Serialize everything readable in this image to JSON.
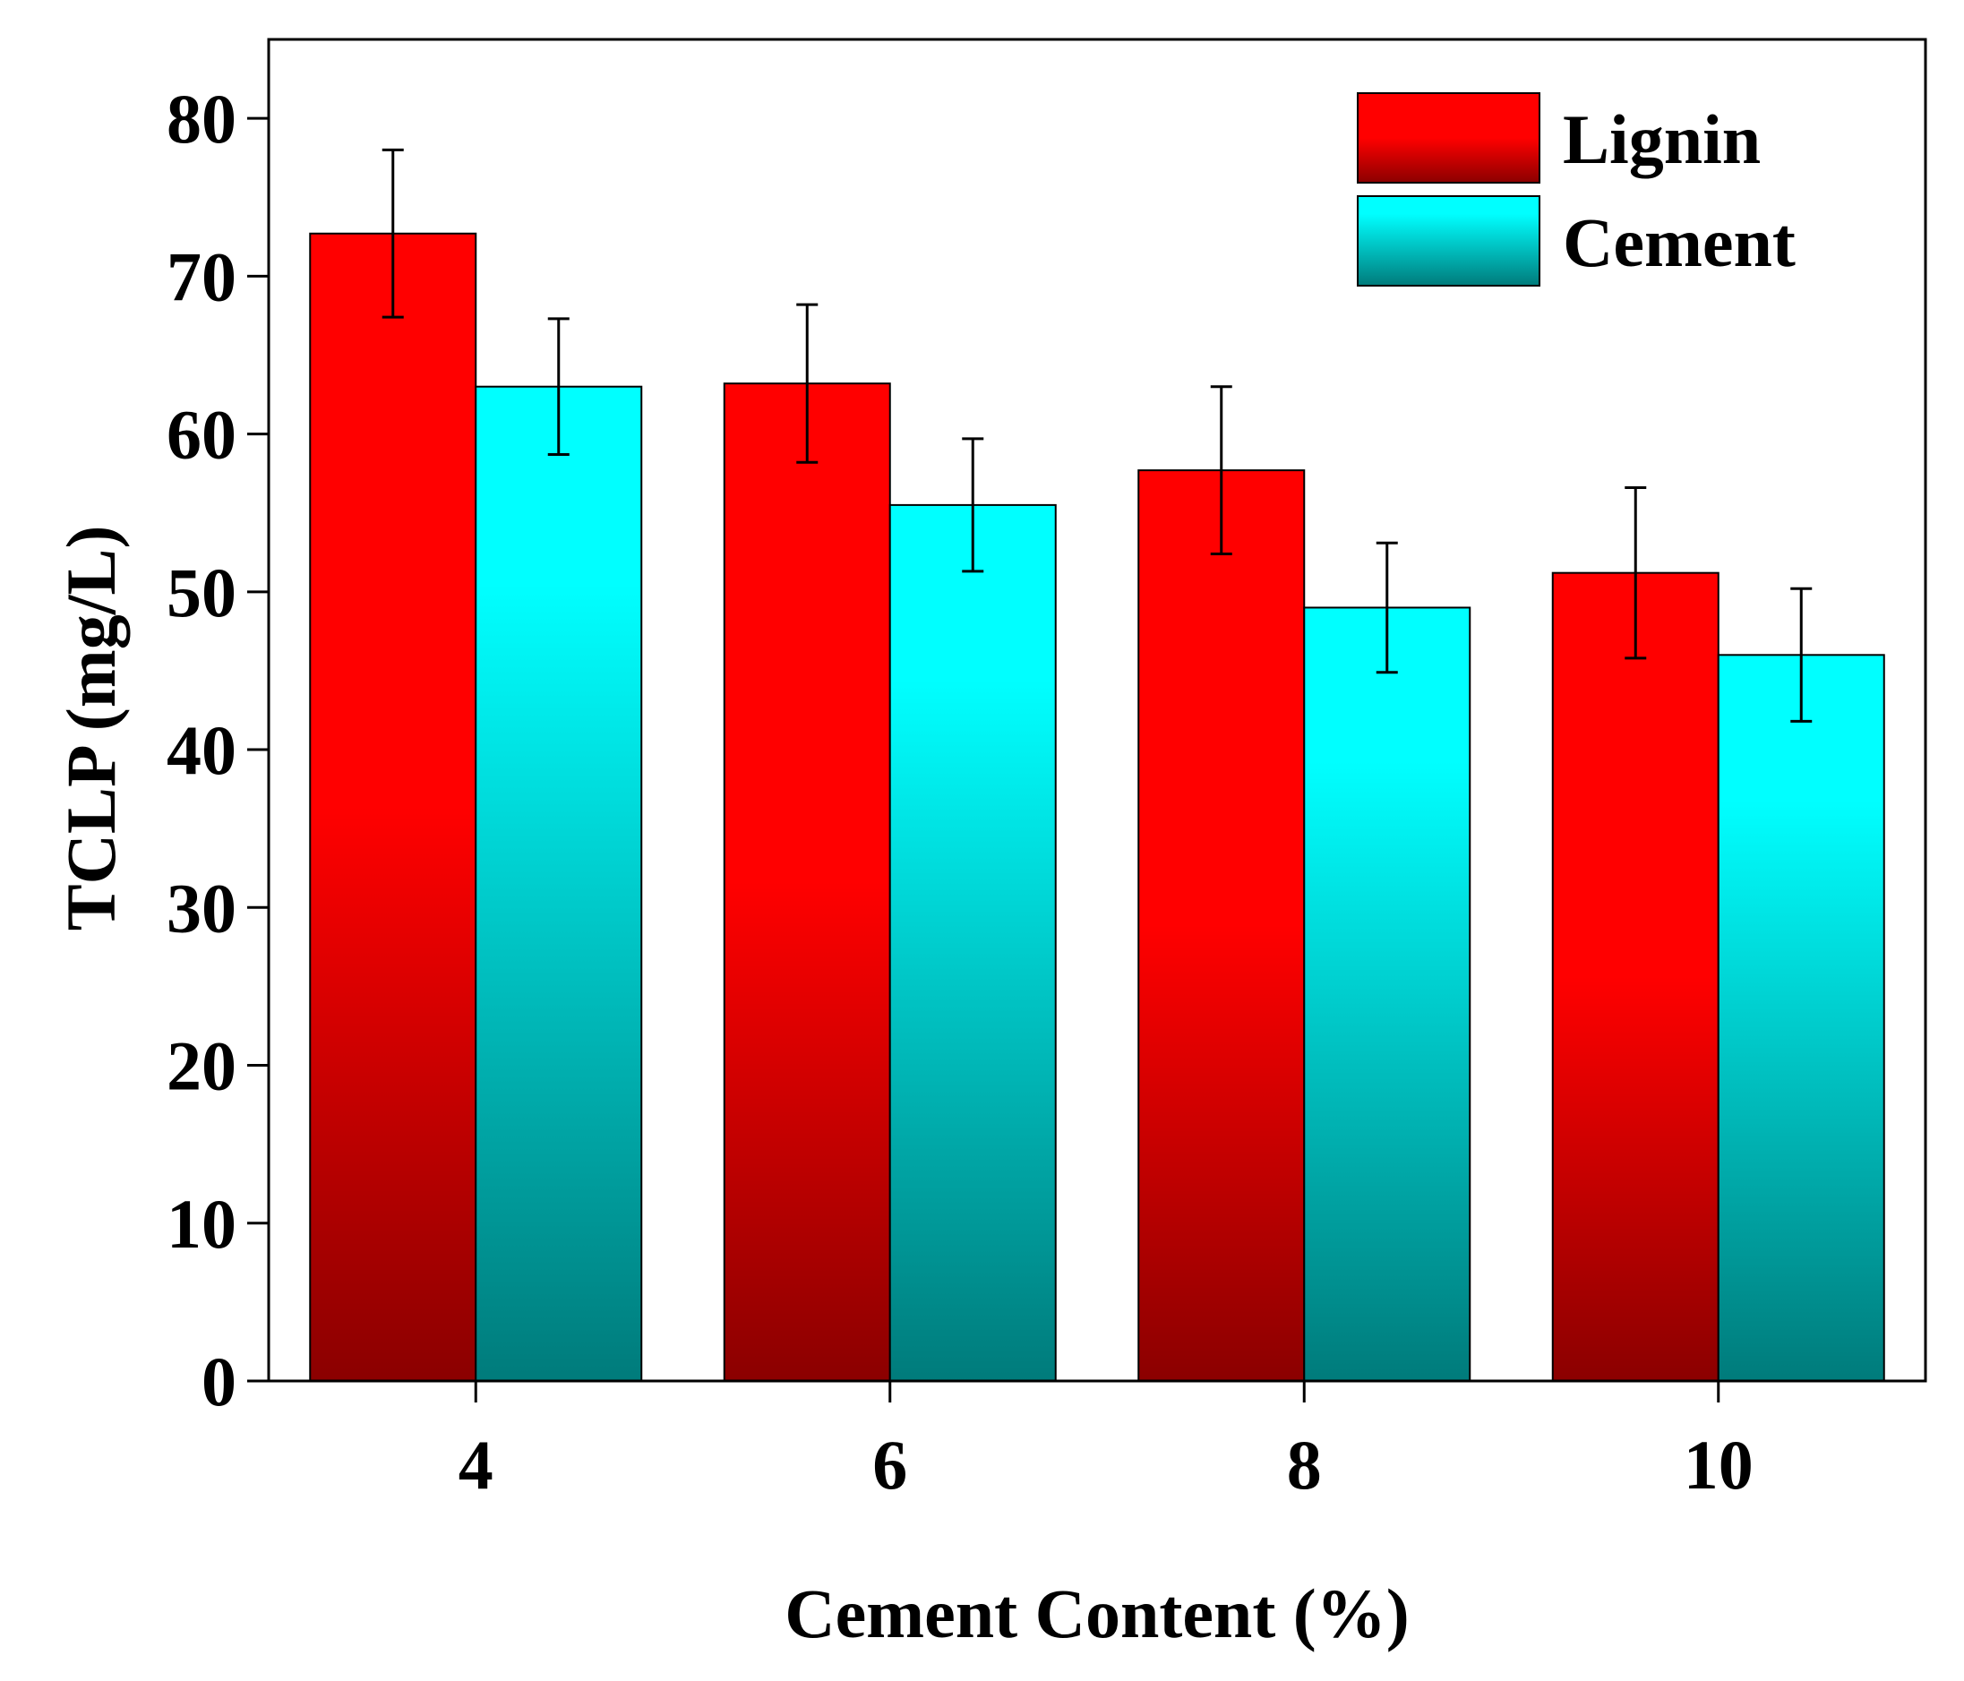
{
  "chart_data": {
    "type": "bar",
    "xlabel": "Cement Content (%)",
    "ylabel": "TCLP (mg/L)",
    "categories": [
      "4",
      "6",
      "8",
      "10"
    ],
    "ylim": [
      0,
      85
    ],
    "yticks": [
      "0",
      "10",
      "20",
      "30",
      "40",
      "50",
      "60",
      "70",
      "80"
    ],
    "legend_position": "top-right",
    "series": [
      {
        "name": "Lignin",
        "values": [
          72.7,
          63.2,
          57.7,
          51.2
        ],
        "errors": [
          5.3,
          5.0,
          5.3,
          5.4
        ],
        "color_top": "#ff0000",
        "color_bottom": "#8b0000"
      },
      {
        "name": "Cement",
        "values": [
          63.0,
          55.5,
          49.0,
          46.0
        ],
        "errors": [
          4.3,
          4.2,
          4.1,
          4.2
        ],
        "color_top": "#00ffff",
        "color_bottom": "#007b7b"
      }
    ]
  }
}
